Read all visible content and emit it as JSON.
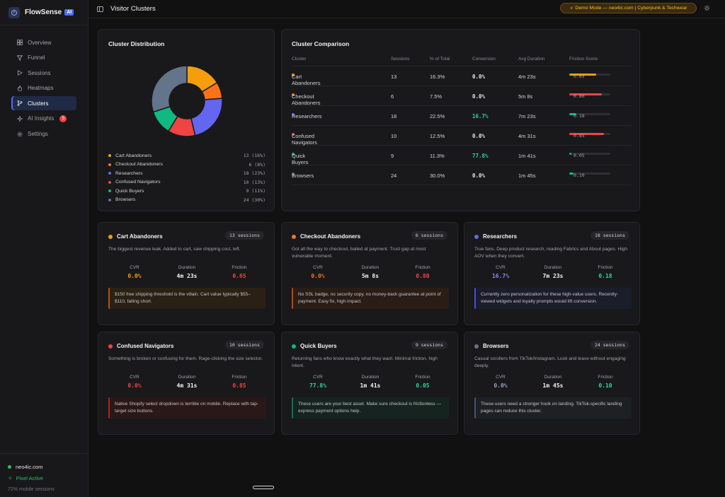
{
  "brand": {
    "name": "FlowSense",
    "badge": "AI"
  },
  "sidebar": {
    "items": [
      {
        "label": "Overview",
        "icon": "grid-icon",
        "active": false
      },
      {
        "label": "Funnel",
        "icon": "funnel-icon",
        "active": false
      },
      {
        "label": "Sessions",
        "icon": "play-icon",
        "active": false
      },
      {
        "label": "Heatmaps",
        "icon": "flame-icon",
        "active": false
      },
      {
        "label": "Clusters",
        "icon": "branch-icon",
        "active": true
      },
      {
        "label": "AI Insights",
        "icon": "sparkle-icon",
        "active": false,
        "badge": "5"
      },
      {
        "label": "Settings",
        "icon": "gear-icon",
        "active": false
      }
    ],
    "footer": {
      "site": "neo4ic.com",
      "pixel": "Pixel Active",
      "mobile": "72% mobile sessions"
    }
  },
  "header": {
    "title": "Visitor Clusters",
    "demo": "Demo Mode — neo4ic.com | Cyberpunk & Techwear"
  },
  "distribution": {
    "title": "Cluster Distribution",
    "legend": [
      {
        "name": "Cart Abandoners",
        "value": "13 (16%)",
        "color": "#f59e0b"
      },
      {
        "name": "Checkout Abandoners",
        "value": "6 (8%)",
        "color": "#f97316"
      },
      {
        "name": "Researchers",
        "value": "18 (23%)",
        "color": "#6366f1"
      },
      {
        "name": "Confused Navigators",
        "value": "10 (13%)",
        "color": "#ef4444"
      },
      {
        "name": "Quick Buyers",
        "value": "9 (11%)",
        "color": "#10b981"
      },
      {
        "name": "Browsers",
        "value": "24 (30%)",
        "color": "#64748b"
      }
    ]
  },
  "chart_data": {
    "type": "pie",
    "title": "Cluster Distribution",
    "categories": [
      "Cart Abandoners",
      "Checkout Abandoners",
      "Researchers",
      "Confused Navigators",
      "Quick Buyers",
      "Browsers"
    ],
    "values": [
      13,
      6,
      18,
      10,
      9,
      24
    ],
    "colors": [
      "#f59e0b",
      "#f97316",
      "#6366f1",
      "#ef4444",
      "#10b981",
      "#64748b"
    ],
    "donut": true
  },
  "comparison": {
    "title": "Cluster Comparison",
    "columns": [
      "Cluster",
      "Sessions",
      "% of Total",
      "Conversion",
      "Avg Duration",
      "Friction Score"
    ],
    "rows": [
      {
        "name": "Cart Abandoners",
        "color": "#f59e0b",
        "sessions": "13",
        "pct": "16.3%",
        "conv": "0.0%",
        "conv_color": "#e4e4e7",
        "dur": "4m 23s",
        "friction": 0.65,
        "friction_label": "0.65",
        "bar_color": "#f59e0b"
      },
      {
        "name": "Checkout Abandoners",
        "color": "#f97316",
        "sessions": "6",
        "pct": "7.5%",
        "conv": "0.0%",
        "conv_color": "#e4e4e7",
        "dur": "5m 8s",
        "friction": 0.8,
        "friction_label": "0.80",
        "bar_color": "#ef4444"
      },
      {
        "name": "Researchers",
        "color": "#6366f1",
        "sessions": "18",
        "pct": "22.5%",
        "conv": "16.7%",
        "conv_color": "#34d399",
        "dur": "7m 23s",
        "friction": 0.18,
        "friction_label": "0.18",
        "bar_color": "#10b981"
      },
      {
        "name": "Confused Navigators",
        "color": "#ef4444",
        "sessions": "10",
        "pct": "12.5%",
        "conv": "0.0%",
        "conv_color": "#e4e4e7",
        "dur": "4m 31s",
        "friction": 0.85,
        "friction_label": "0.85",
        "bar_color": "#ef4444"
      },
      {
        "name": "Quick Buyers",
        "color": "#10b981",
        "sessions": "9",
        "pct": "11.3%",
        "conv": "77.8%",
        "conv_color": "#34d399",
        "dur": "1m 41s",
        "friction": 0.05,
        "friction_label": "0.05",
        "bar_color": "#10b981"
      },
      {
        "name": "Browsers",
        "color": "#64748b",
        "sessions": "24",
        "pct": "30.0%",
        "conv": "0.0%",
        "conv_color": "#e4e4e7",
        "dur": "1m 45s",
        "friction": 0.1,
        "friction_label": "0.10",
        "bar_color": "#10b981"
      }
    ]
  },
  "stat_labels": {
    "cvr": "CVR",
    "duration": "Duration",
    "friction": "Friction"
  },
  "clusters": [
    {
      "name": "Cart Abandoners",
      "color": "#f59e0b",
      "badge": "13 sessions",
      "desc": "The biggest revenue leak. Added to cart, saw shipping cost, left.",
      "cvr": "0.0%",
      "cvr_color": "#f59e0b",
      "duration": "4m 23s",
      "friction": "0.65",
      "friction_color": "#ef4444",
      "note": "$150 free shipping threshold is the villain. Cart value typically $55–$110, falling short.",
      "note_border": "#b45309",
      "note_bg": "#2a2114"
    },
    {
      "name": "Checkout Abandoners",
      "color": "#f97316",
      "badge": "6 sessions",
      "desc": "Got all the way to checkout, bailed at payment. Trust gap at most vulnerable moment.",
      "cvr": "0.0%",
      "cvr_color": "#f97316",
      "duration": "5m 8s",
      "friction": "0.80",
      "friction_color": "#ef4444",
      "note": "No SSL badge, no security copy, no money-back guarantee at point of payment. Easy fix, high impact.",
      "note_border": "#c2410c",
      "note_bg": "#2a1d16"
    },
    {
      "name": "Researchers",
      "color": "#6366f1",
      "badge": "18 sessions",
      "desc": "True fans. Deep product research, reading Fabrics and About pages. High AOV when they convert.",
      "cvr": "16.7%",
      "cvr_color": "#818cf8",
      "duration": "7m 23s",
      "friction": "0.18",
      "friction_color": "#34d399",
      "note": "Currently zero personalization for these high-value users. Recently-viewed widgets and loyalty prompts would lift conversion.",
      "note_border": "#4f46e5",
      "note_bg": "#1c1d2a"
    },
    {
      "name": "Confused Navigators",
      "color": "#ef4444",
      "badge": "10 sessions",
      "desc": "Something is broken or confusing for them. Rage-clicking the size selector.",
      "cvr": "0.0%",
      "cvr_color": "#ef4444",
      "duration": "4m 31s",
      "friction": "0.85",
      "friction_color": "#ef4444",
      "note": "Native Shopify select dropdown is terrible on mobile. Replace with tap-target size buttons.",
      "note_border": "#b91c1c",
      "note_bg": "#2a1818"
    },
    {
      "name": "Quick Buyers",
      "color": "#10b981",
      "badge": "9 sessions",
      "desc": "Returning fans who know exactly what they want. Minimal friction, high intent.",
      "cvr": "77.8%",
      "cvr_color": "#34d399",
      "duration": "1m 41s",
      "friction": "0.05",
      "friction_color": "#34d399",
      "note": "These users are your best asset. Make sure checkout is frictionless — express payment options help.",
      "note_border": "#047857",
      "note_bg": "#16241f"
    },
    {
      "name": "Browsers",
      "color": "#64748b",
      "badge": "24 sessions",
      "desc": "Casual scrollers from TikTok/Instagram. Look and leave without engaging deeply.",
      "cvr": "0.0%",
      "cvr_color": "#94a3b8",
      "duration": "1m 45s",
      "friction": "0.10",
      "friction_color": "#34d399",
      "note": "These users need a stronger hook on landing. TikTok-specific landing pages can reduce this cluster.",
      "note_border": "#475569",
      "note_bg": "#1e2024"
    }
  ]
}
